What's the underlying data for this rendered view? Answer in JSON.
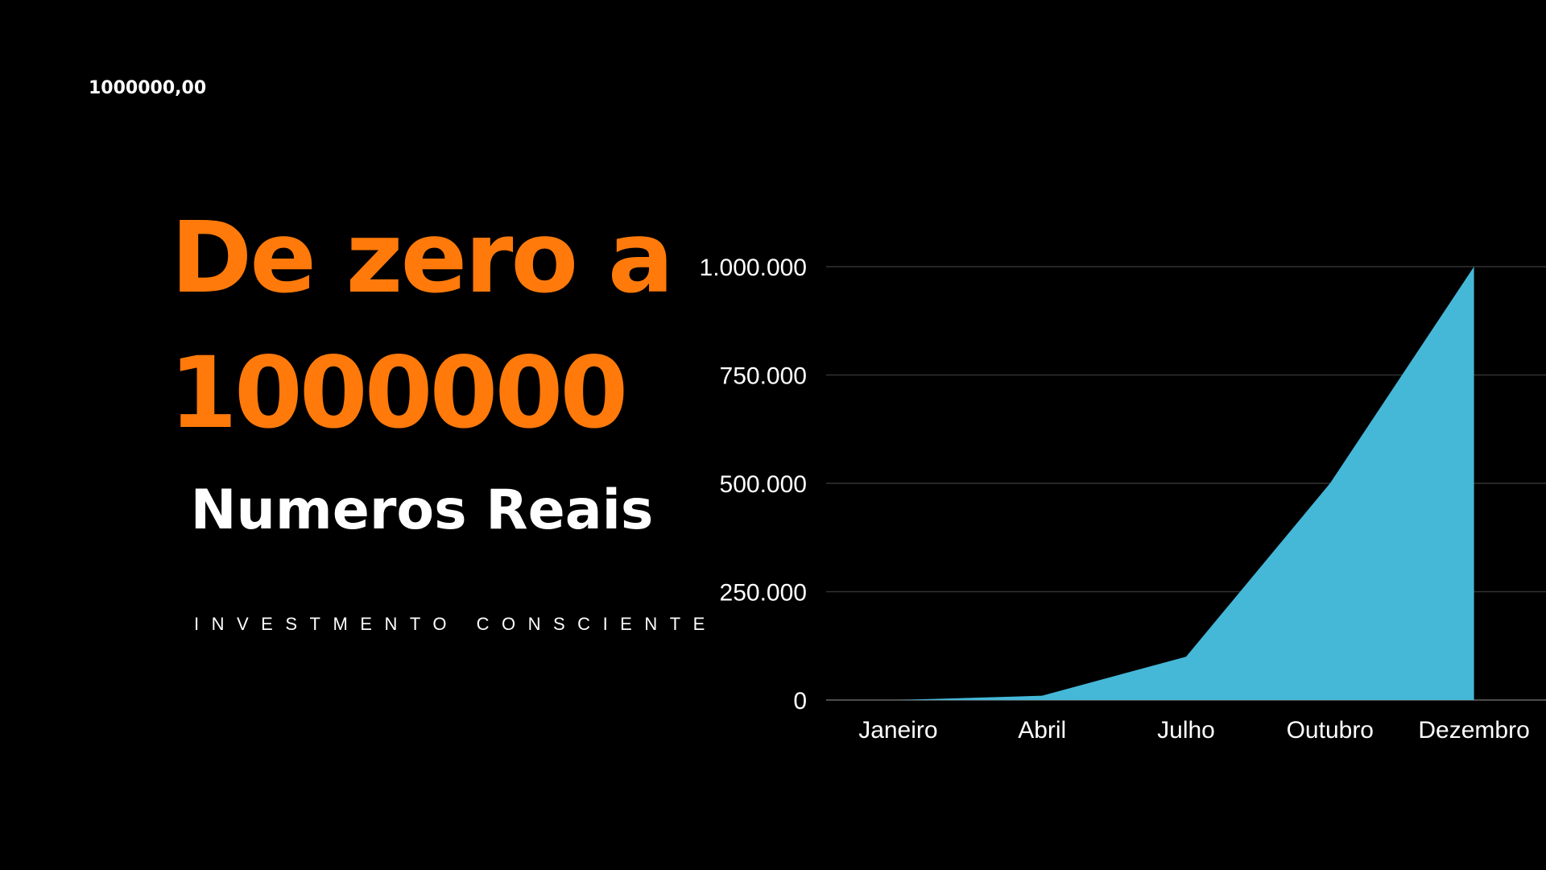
{
  "slide": {
    "corner_label": "1000000,00",
    "title_line_1": "De zero a",
    "title_line_2": "1000000",
    "subtitle": "Numeros Reais",
    "tagline": "INVESTMENTO CONSCIENTE"
  },
  "chart_data": {
    "type": "area",
    "categories": [
      "Janeiro",
      "Abril",
      "Julho",
      "Outubro",
      "Dezembro"
    ],
    "values": [
      0,
      10000,
      100000,
      500000,
      1000000
    ],
    "color": "#45b8d8",
    "ylim": [
      0,
      1000000
    ],
    "yticks": [
      0,
      {
        "value": 250000,
        "label": "250.000"
      },
      {
        "value": 500000,
        "label": "500.000"
      },
      {
        "value": 750000,
        "label": "750.000"
      },
      {
        "value": 1000000,
        "label": "1.000.000"
      }
    ],
    "grid": true
  }
}
